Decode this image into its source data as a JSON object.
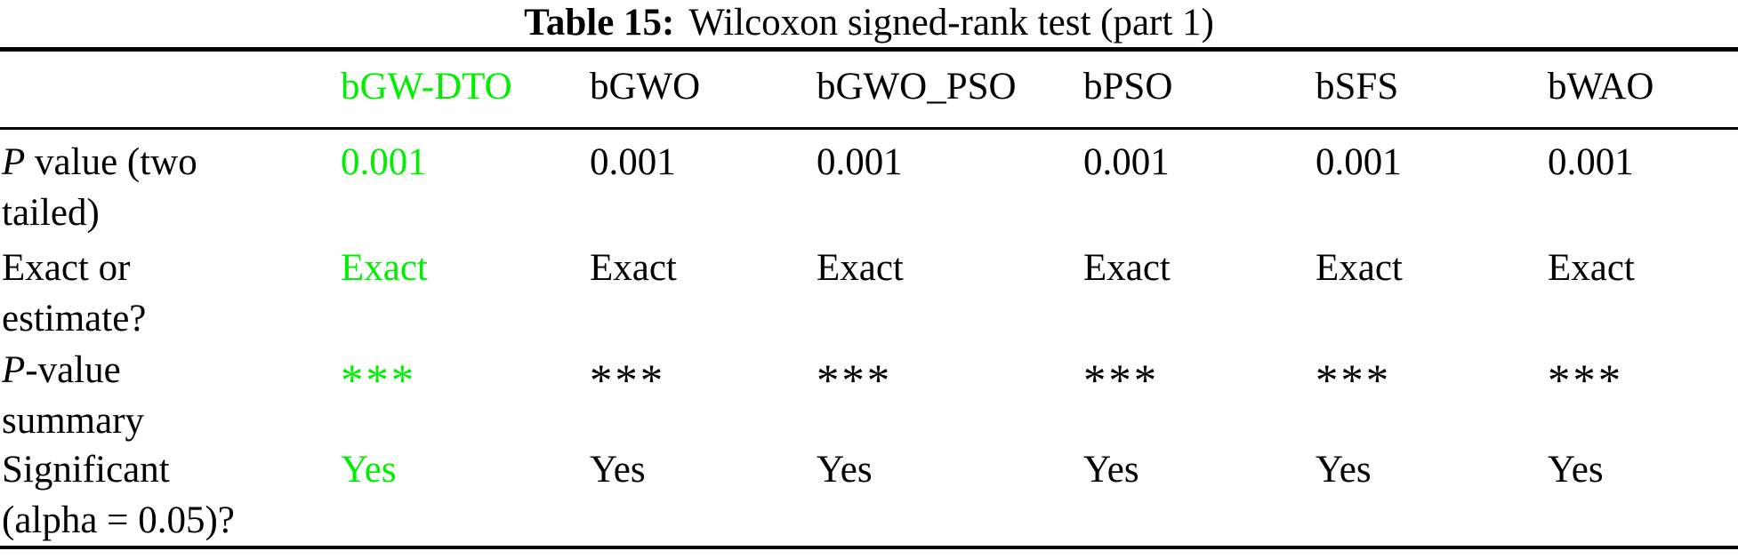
{
  "caption": {
    "label": "Table 15:",
    "text": "Wilcoxon signed-rank test (part 1)"
  },
  "highlight_color": "#00ee00",
  "table": {
    "columns": [
      "",
      "bGW-DTO",
      "bGWO",
      "bGWO_PSO",
      "bPSO",
      "bSFS",
      "bWAO"
    ],
    "rows": [
      {
        "label_italic": "P",
        "label_line1": " value (two",
        "label_line2": "tailed)",
        "values": [
          "0.001",
          "0.001",
          "0.001",
          "0.001",
          "0.001",
          "0.001"
        ]
      },
      {
        "label_italic": "",
        "label_line1": "Exact or",
        "label_line2": "estimate?",
        "values": [
          "Exact",
          "Exact",
          "Exact",
          "Exact",
          "Exact",
          "Exact"
        ]
      },
      {
        "label_italic": "P",
        "label_line1": "-value",
        "label_line2": "summary",
        "values": [
          "***",
          "***",
          "***",
          "***",
          "***",
          "***"
        ]
      },
      {
        "label_italic": "",
        "label_line1": "Significant",
        "label_line2": "(alpha = 0.05)?",
        "values": [
          "Yes",
          "Yes",
          "Yes",
          "Yes",
          "Yes",
          "Yes"
        ]
      }
    ]
  }
}
